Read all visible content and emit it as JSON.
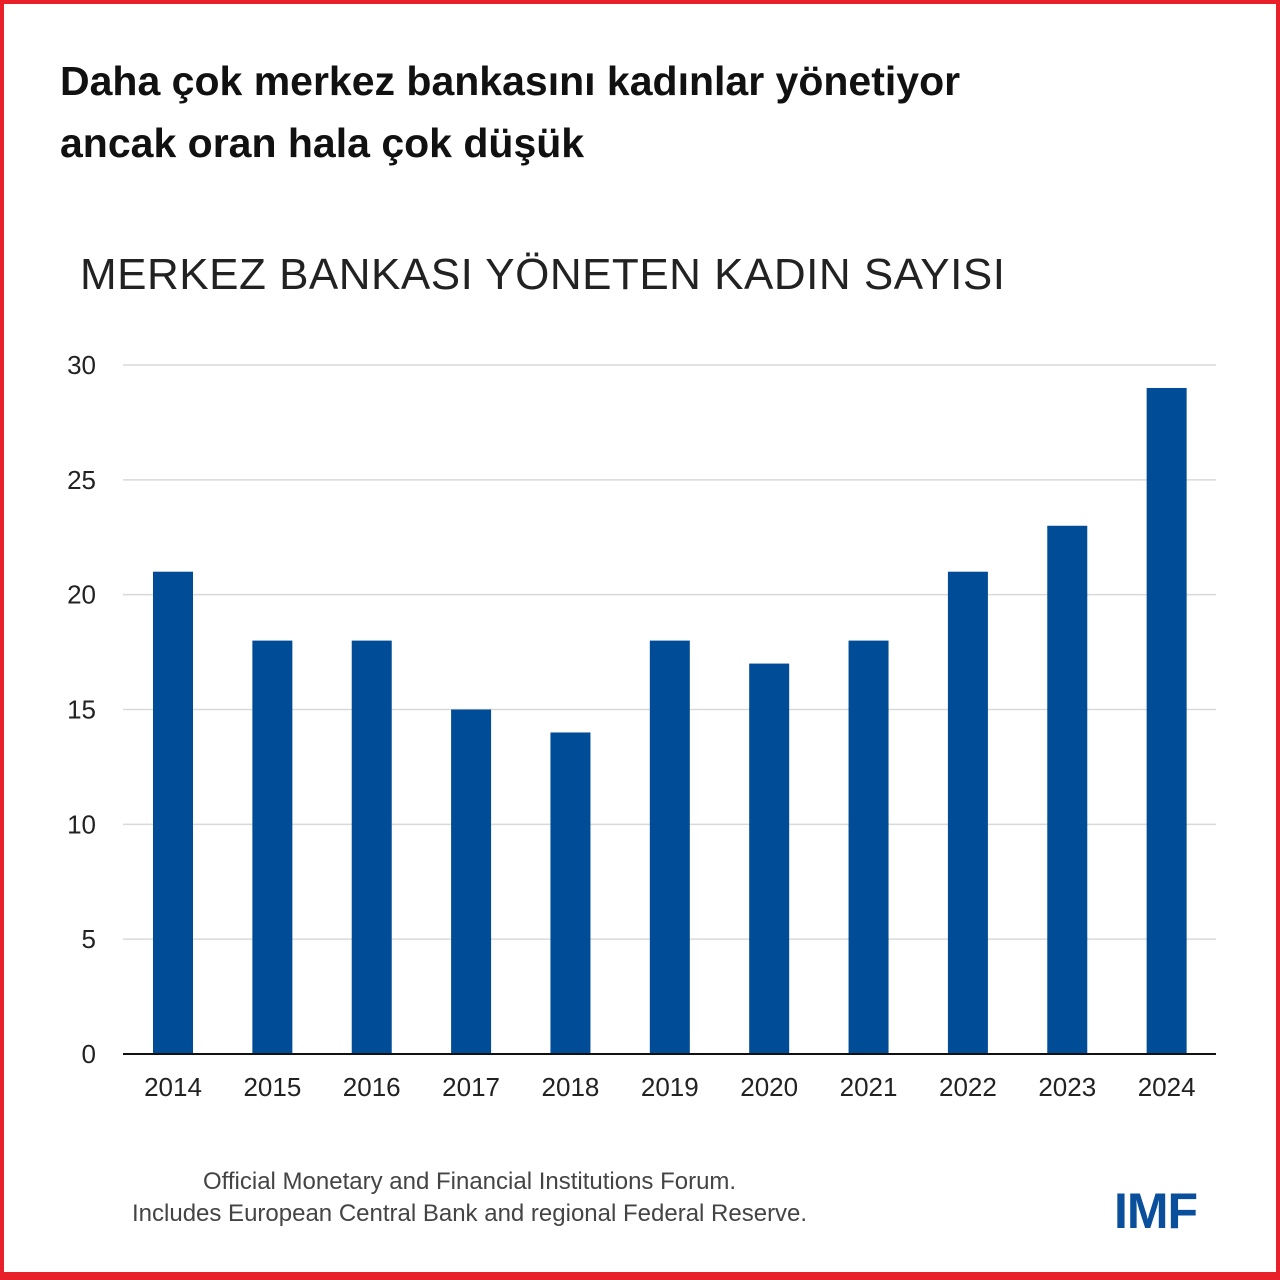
{
  "title": "Daha çok merkez bankasını kadınlar yönetiyor\nancak oran hala çok düşük",
  "chart_data": {
    "type": "bar",
    "title": "MERKEZ BANKASI YÖNETEN KADIN SAYISI",
    "categories": [
      "2014",
      "2015",
      "2016",
      "2017",
      "2018",
      "2019",
      "2020",
      "2021",
      "2022",
      "2023",
      "2024"
    ],
    "values": [
      21,
      18,
      18,
      15,
      14,
      18,
      17,
      18,
      21,
      23,
      29
    ],
    "ylim": [
      0,
      30
    ],
    "yticks": [
      0,
      5,
      10,
      15,
      20,
      25,
      30
    ],
    "grid": true,
    "bar_color": "#004c97"
  },
  "source": [
    "Official Monetary and Financial Institutions Forum.",
    "Includes European Central Bank and regional Federal Reserve."
  ],
  "logo": "IMF",
  "colors": {
    "border": "#e8202a",
    "logo": "#0a4f9c"
  }
}
